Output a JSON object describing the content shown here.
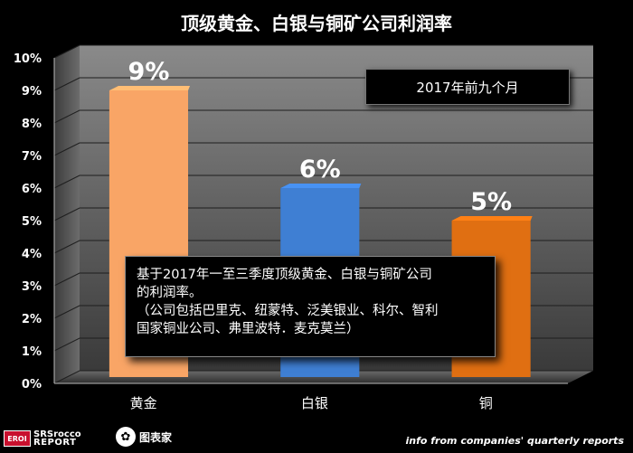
{
  "title": "顶级黄金、白银与铜矿公司利润率",
  "period_label": "2017年前九个月",
  "note": {
    "line1": "基于2017年一至三季度顶级黄金、白银与铜矿公司",
    "line2": "的利润率。",
    "line3": "（公司包括巴里克、纽蒙特、泛美银业、科尔、智利",
    "line4": "国家铜业公司、弗里波特．麦克莫兰）"
  },
  "source": "info from companies' quarterly reports",
  "logos": {
    "left_badge": "EROI",
    "left_line1": "SRSrocco",
    "left_line2": "REPORT",
    "right_symbol": "✿",
    "right_text": "图表家"
  },
  "colors": {
    "gold": "#f9a566",
    "silver": "#3f7fd3",
    "copper": "#e06f12"
  },
  "chart_data": {
    "type": "bar",
    "categories": [
      "黄金",
      "白银",
      "铜"
    ],
    "values": [
      9,
      6,
      5
    ],
    "data_labels": [
      "9%",
      "6%",
      "5%"
    ],
    "yticks": [
      "0%",
      "1%",
      "2%",
      "3%",
      "4%",
      "5%",
      "6%",
      "7%",
      "8%",
      "9%",
      "10%"
    ],
    "ylim": [
      0,
      10
    ],
    "grid": true,
    "legend": "none"
  }
}
